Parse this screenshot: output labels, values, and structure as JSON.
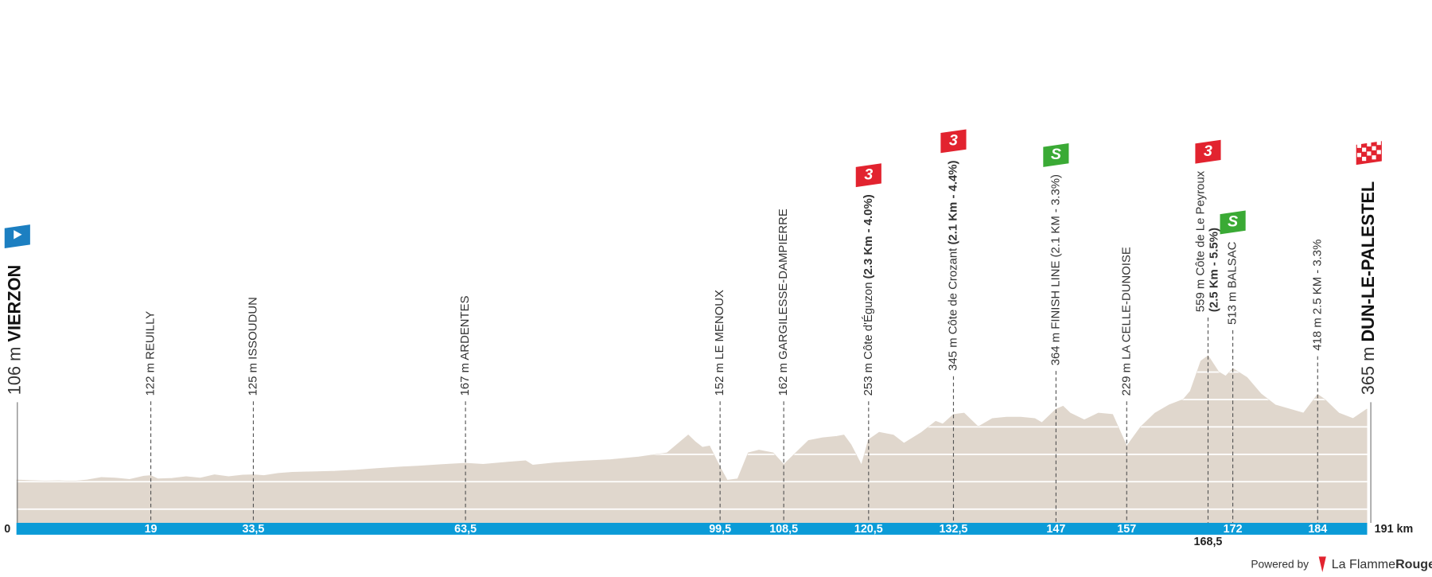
{
  "chart_data": {
    "type": "area",
    "color": "#e0d7cd",
    "bar_color": "#0b9bd7",
    "xlim": [
      0,
      191
    ],
    "ylim": [
      -50,
      1000
    ],
    "yticks": [
      0,
      100,
      200,
      300,
      400,
      500
    ],
    "grid": true,
    "xticks": [
      0,
      19,
      {
        "value": 33.5,
        "label": "33,5"
      },
      {
        "value": 63.5,
        "label": "63,5"
      },
      {
        "value": 99.5,
        "label": "99,5"
      },
      {
        "value": 108.5,
        "label": "108,5"
      },
      {
        "value": 120.5,
        "label": "120,5"
      },
      {
        "value": 132.5,
        "label": "132,5"
      },
      147,
      157,
      {
        "value": 168.5,
        "label": "168,5"
      },
      172,
      184,
      {
        "value": 191,
        "label": "191 km"
      }
    ],
    "x": [
      0,
      2,
      4,
      6,
      8,
      10,
      12,
      14,
      16,
      18,
      19,
      20,
      22,
      24,
      26,
      28,
      30,
      32,
      33.5,
      35,
      37,
      39,
      42,
      45,
      48,
      51,
      54,
      57,
      60,
      63.5,
      66,
      69,
      72,
      73,
      76,
      80,
      84,
      88,
      92,
      95,
      96,
      97,
      98,
      99.5,
      100.5,
      102,
      103.5,
      105,
      107,
      108.5,
      110,
      112,
      114,
      116,
      117,
      118,
      119.5,
      120.5,
      122,
      124,
      125.5,
      128,
      130,
      131,
      132.5,
      134,
      136,
      138,
      140,
      142,
      144,
      145,
      147,
      148,
      149,
      151,
      153,
      155,
      157,
      159,
      161,
      163,
      165,
      166,
      167.5,
      168.5,
      170,
      171,
      172,
      174,
      176,
      178,
      180,
      182,
      184,
      185,
      187,
      189,
      191
    ],
    "values": [
      106,
      104,
      102,
      103,
      101,
      106,
      115,
      113,
      108,
      120,
      122,
      110,
      112,
      118,
      113,
      125,
      118,
      124,
      125,
      122,
      130,
      134,
      136,
      138,
      142,
      148,
      153,
      157,
      162,
      167,
      163,
      170,
      176,
      160,
      168,
      175,
      180,
      190,
      205,
      270,
      245,
      225,
      230,
      152,
      105,
      110,
      205,
      215,
      205,
      162,
      200,
      250,
      260,
      265,
      270,
      235,
      160,
      253,
      280,
      270,
      240,
      280,
      320,
      310,
      345,
      350,
      300,
      330,
      335,
      335,
      330,
      315,
      364,
      375,
      350,
      325,
      350,
      345,
      229,
      300,
      350,
      380,
      400,
      430,
      540,
      559,
      500,
      485,
      513,
      480,
      420,
      380,
      365,
      350,
      418,
      400,
      350,
      330,
      365
    ],
    "start": {
      "altitude": "106 m",
      "name": "VIERZON",
      "color": "#1c7fc1"
    },
    "finish": {
      "altitude": "365 m",
      "name": "DUN-LE-PALESTEL"
    },
    "waypoints": [
      {
        "x": 19,
        "label": "122 m REUILLY"
      },
      {
        "x": 33.5,
        "label": "125 m ISSOUDUN"
      },
      {
        "x": 63.5,
        "label": "167 m ARDENTES"
      },
      {
        "x": 99.5,
        "label": "152 m LE MENOUX"
      },
      {
        "x": 108.5,
        "label": "162 m GARGILESSE-DAMPIERRE"
      },
      {
        "x": 120.5,
        "label": "253 m Côte d'Éguzon",
        "detail": "(2.3 Km - 4.0%)",
        "badge": "3",
        "badge_color": "#e2232f"
      },
      {
        "x": 132.5,
        "label": "345 m Côte de Crozant",
        "detail": "(2.1 Km - 4.4%)",
        "badge": "3",
        "badge_color": "#e2232f"
      },
      {
        "x": 147,
        "label": "364 m FINISH LINE (2.1 KM - 3.3%)",
        "badge": "S",
        "badge_color": "#3aaa35"
      },
      {
        "x": 157,
        "label": "229 m LA CELLE-DUNOISE"
      },
      {
        "x": 168.5,
        "label": "559 m Côte de Le Peyroux",
        "detail": "(2.5 Km - 5.5%)",
        "badge": "3",
        "badge_color": "#e2232f"
      },
      {
        "x": 172,
        "label": "513 m BALSAC",
        "badge": "S",
        "badge_color": "#3aaa35"
      },
      {
        "x": 184,
        "label": "418 m 2.5 KM - 3.3%"
      }
    ],
    "footer": {
      "powered": "Powered by",
      "brand": "La Flamme",
      "brand_bold": "Rouge"
    }
  }
}
